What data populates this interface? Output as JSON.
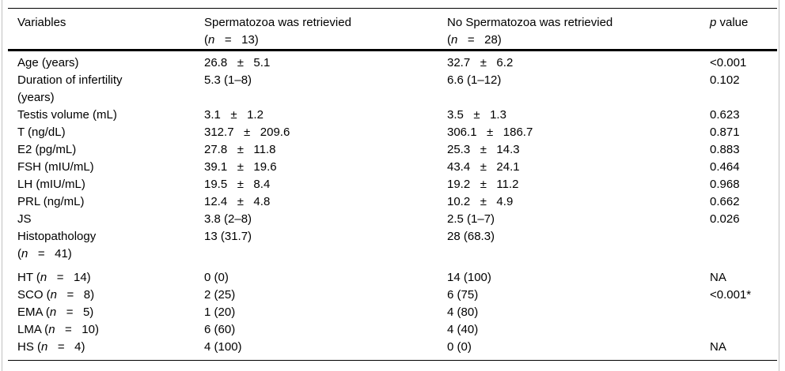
{
  "colors": {
    "background": "#ffffff",
    "text": "#000000",
    "rule": "#000000",
    "page_edge": "#c0c0c0"
  },
  "table": {
    "header": {
      "variables": {
        "lines": [
          [
            {
              "t": "Variables"
            }
          ]
        ]
      },
      "group1": {
        "lines": [
          [
            {
              "t": "Spermatozoa was retrievied"
            }
          ],
          [
            {
              "t": "("
            },
            {
              "t": "n",
              "i": true
            },
            {
              "t": "   =   13)"
            }
          ]
        ]
      },
      "group2": {
        "lines": [
          [
            {
              "t": "No Spermatozoa was retrievied"
            }
          ],
          [
            {
              "t": "("
            },
            {
              "t": "n",
              "i": true
            },
            {
              "t": "   =   28)"
            }
          ]
        ]
      },
      "pvalue": {
        "lines": [
          [
            {
              "t": "p",
              "i": true
            },
            {
              "t": " value"
            }
          ]
        ]
      }
    },
    "rows": [
      {
        "label_lines": [
          [
            {
              "t": "Age (years)"
            }
          ]
        ],
        "group1": "26.8   ±   5.1",
        "group2": "32.7   ±   6.2",
        "p": "<0.001"
      },
      {
        "label_lines": [
          [
            {
              "t": "Duration of infertility"
            }
          ],
          [
            {
              "t": "(years)"
            }
          ]
        ],
        "group1": "5.3 (1–8)",
        "group2": "6.6 (1–12)",
        "p": "0.102"
      },
      {
        "label_lines": [
          [
            {
              "t": "Testis volume (mL)"
            }
          ]
        ],
        "group1": "3.1   ±   1.2",
        "group2": "3.5   ±   1.3",
        "p": "0.623"
      },
      {
        "label_lines": [
          [
            {
              "t": "T (ng/dL)"
            }
          ]
        ],
        "group1": "312.7   ±   209.6",
        "group2": "306.1   ±   186.7",
        "p": "0.871"
      },
      {
        "label_lines": [
          [
            {
              "t": "E2 (pg/mL)"
            }
          ]
        ],
        "group1": "27.8   ±   11.8",
        "group2": "25.3   ±   14.3",
        "p": "0.883"
      },
      {
        "label_lines": [
          [
            {
              "t": "FSH (mIU/mL)"
            }
          ]
        ],
        "group1": "39.1   ±   19.6",
        "group2": "43.4   ±   24.1",
        "p": "0.464"
      },
      {
        "label_lines": [
          [
            {
              "t": "LH (mIU/mL)"
            }
          ]
        ],
        "group1": "19.5   ±   8.4",
        "group2": "19.2   ±   11.2",
        "p": "0.968"
      },
      {
        "label_lines": [
          [
            {
              "t": "PRL (ng/mL)"
            }
          ]
        ],
        "group1": "12.4   ±   4.8",
        "group2": "10.2   ±   4.9",
        "p": "0.662"
      },
      {
        "label_lines": [
          [
            {
              "t": "JS"
            }
          ]
        ],
        "group1": "3.8 (2–8)",
        "group2": "2.5 (1–7)",
        "p": "0.026"
      },
      {
        "label_lines": [
          [
            {
              "t": "Histopathology"
            }
          ],
          [
            {
              "t": "("
            },
            {
              "t": "n",
              "i": true
            },
            {
              "t": "   =   41)"
            }
          ]
        ],
        "group1": "13 (31.7)",
        "group2": "28 (68.3)",
        "p": ""
      },
      {
        "label_lines": [
          [
            {
              "t": "HT ("
            },
            {
              "t": "n",
              "i": true
            },
            {
              "t": "   =   14)"
            }
          ]
        ],
        "group1": "0 (0)",
        "group2": "14 (100)",
        "p": "NA",
        "gap_before": true
      },
      {
        "label_lines": [
          [
            {
              "t": "SCO ("
            },
            {
              "t": "n",
              "i": true
            },
            {
              "t": "   =   8)"
            }
          ]
        ],
        "group1": "2 (25)",
        "group2": "6 (75)",
        "p": "<0.001*"
      },
      {
        "label_lines": [
          [
            {
              "t": "EMA ("
            },
            {
              "t": "n",
              "i": true
            },
            {
              "t": "   =   5)"
            }
          ]
        ],
        "group1": "1 (20)",
        "group2": "4 (80)",
        "p": ""
      },
      {
        "label_lines": [
          [
            {
              "t": "LMA ("
            },
            {
              "t": "n",
              "i": true
            },
            {
              "t": "   =   10)"
            }
          ]
        ],
        "group1": "6 (60)",
        "group2": "4 (40)",
        "p": ""
      },
      {
        "label_lines": [
          [
            {
              "t": "HS ("
            },
            {
              "t": "n",
              "i": true
            },
            {
              "t": "   =   4)"
            }
          ]
        ],
        "group1": "4 (100)",
        "group2": "0 (0)",
        "p": "NA"
      }
    ]
  }
}
